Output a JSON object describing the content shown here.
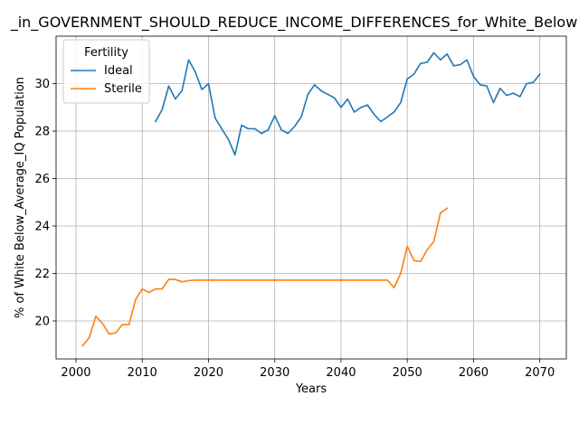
{
  "chart_data": {
    "type": "line",
    "title": "_in_GOVERNMENT_SHOULD_REDUCE_INCOME_DIFFERENCES_for_White_Below",
    "xlabel": "Years",
    "ylabel": "% of White Below_Average_IQ Population",
    "xlim": [
      1997,
      2074
    ],
    "ylim": [
      18.4,
      32.0
    ],
    "xticks": [
      2000,
      2010,
      2020,
      2030,
      2040,
      2050,
      2060,
      2070
    ],
    "yticks": [
      20,
      22,
      24,
      26,
      28,
      30
    ],
    "grid": true,
    "legend": {
      "title": "Fertility",
      "placement": "top-left"
    },
    "series": [
      {
        "name": "Ideal",
        "color": "#1f77b4",
        "x": [
          2012,
          2013,
          2014,
          2015,
          2016,
          2017,
          2018,
          2019,
          2020,
          2021,
          2022,
          2023,
          2024,
          2025,
          2026,
          2027,
          2028,
          2029,
          2030,
          2031,
          2032,
          2033,
          2034,
          2035,
          2036,
          2037,
          2038,
          2039,
          2040,
          2041,
          2042,
          2043,
          2044,
          2045,
          2046,
          2047,
          2048,
          2049,
          2050,
          2051,
          2052,
          2053,
          2054,
          2055,
          2056,
          2057,
          2058,
          2059,
          2060,
          2061,
          2062,
          2063,
          2064,
          2065,
          2066,
          2067,
          2068,
          2069,
          2070
        ],
        "y": [
          28.4,
          28.9,
          29.9,
          29.35,
          29.7,
          31.0,
          30.5,
          29.75,
          30.0,
          28.55,
          28.1,
          27.65,
          27.0,
          28.25,
          28.1,
          28.1,
          27.9,
          28.05,
          28.65,
          28.05,
          27.9,
          28.2,
          28.6,
          29.55,
          29.95,
          29.7,
          29.55,
          29.4,
          29.0,
          29.35,
          28.8,
          29.0,
          29.1,
          28.7,
          28.4,
          28.6,
          28.8,
          29.2,
          30.2,
          30.4,
          30.85,
          30.9,
          31.3,
          31.0,
          31.25,
          30.75,
          30.8,
          31.0,
          30.3,
          29.95,
          29.9,
          29.2,
          29.8,
          29.5,
          29.6,
          29.45,
          30.0,
          30.05,
          30.4
        ]
      },
      {
        "name": "Sterile",
        "color": "#ff7f0e",
        "x": [
          2001,
          2002,
          2003,
          2004,
          2005,
          2006,
          2007,
          2008,
          2009,
          2010,
          2011,
          2012,
          2013,
          2014,
          2015,
          2016,
          2017,
          2018,
          2019,
          2020,
          2021,
          2022,
          2023,
          2024,
          2025,
          2026,
          2027,
          2028,
          2029,
          2030,
          2031,
          2032,
          2033,
          2034,
          2035,
          2036,
          2037,
          2038,
          2039,
          2040,
          2041,
          2042,
          2043,
          2044,
          2045,
          2046,
          2047,
          2048,
          2049,
          2050,
          2051,
          2052,
          2053,
          2054,
          2055,
          2056
        ],
        "y": [
          18.95,
          19.3,
          20.2,
          19.9,
          19.45,
          19.5,
          19.85,
          19.85,
          20.9,
          21.35,
          21.2,
          21.35,
          21.35,
          21.75,
          21.75,
          21.65,
          21.7,
          21.72,
          21.72,
          21.72,
          21.72,
          21.72,
          21.72,
          21.72,
          21.72,
          21.72,
          21.72,
          21.72,
          21.72,
          21.72,
          21.72,
          21.72,
          21.72,
          21.72,
          21.72,
          21.72,
          21.72,
          21.72,
          21.72,
          21.72,
          21.72,
          21.72,
          21.72,
          21.72,
          21.72,
          21.72,
          21.72,
          21.4,
          22.0,
          23.15,
          22.55,
          22.5,
          23.0,
          23.35,
          24.55,
          24.75
        ]
      }
    ]
  }
}
